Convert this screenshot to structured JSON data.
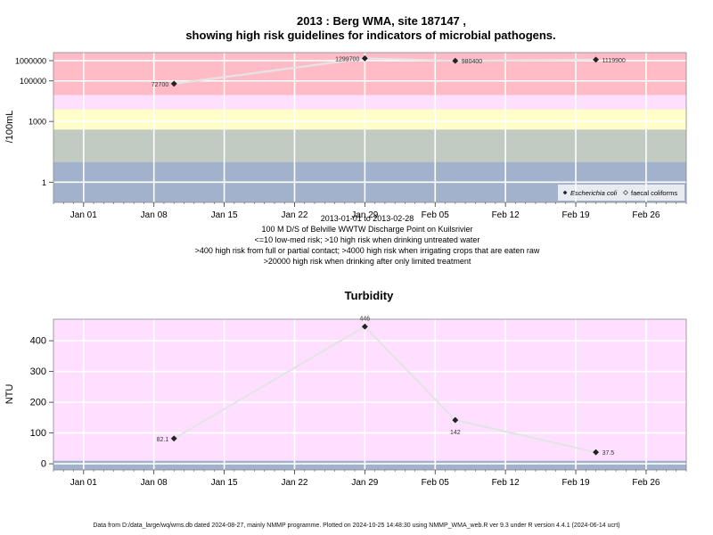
{
  "chart_data": [
    {
      "type": "scatter",
      "title": "2013 : Berg WMA, site 187147 ,",
      "subtitle": "showing high risk guidelines for indicators of microbial pathogens.",
      "ylabel": "/100mL",
      "y_scale": "log",
      "xlabel_lines": [
        "2013-01-01 to 2013-02-28",
        "100 M D/S of Belville WWTW Discharge Point on Kuilsrivier",
        "<=10 low-med risk; >10 high risk when drinking untreated water",
        ">400 high risk from full or partial contact; >4000 high risk when irrigating crops that are eaten raw",
        ">20000 high risk when drinking after only limited treatment"
      ],
      "x_ticks": [
        "Jan 01",
        "Jan 08",
        "Jan 15",
        "Jan 22",
        "Jan 29",
        "Feb 05",
        "Feb 12",
        "Feb 19",
        "Feb 26"
      ],
      "y_ticks": [
        "1000000",
        "100000",
        "1000",
        "1"
      ],
      "xlim": [
        "2012-12-29",
        "2013-03-02"
      ],
      "ylim": [
        0.1,
        2500000
      ],
      "risk_bands": [
        {
          "from": 0.1,
          "to": 10,
          "color": "#a3b2cc"
        },
        {
          "from": 10,
          "to": 400,
          "color": "#c2cbc2"
        },
        {
          "from": 400,
          "to": 4000,
          "color": "#fffdc8"
        },
        {
          "from": 4000,
          "to": 20000,
          "color": "#ffdfff"
        },
        {
          "from": 20000,
          "to": 2500000,
          "color": "#ffbcc7"
        }
      ],
      "legend_position": "bottom-right",
      "series": [
        {
          "name": "Escherichia coli",
          "marker": "filled-diamond",
          "points": [
            {
              "x": "2013-01-10",
              "y": 72700,
              "label": "72700"
            },
            {
              "x": "2013-01-29",
              "y": 1299700,
              "label": "1299700"
            },
            {
              "x": "2013-02-07",
              "y": 980400,
              "label": "980400"
            },
            {
              "x": "2013-02-21",
              "y": 1119900,
              "label": "1119900"
            }
          ]
        },
        {
          "name": "faecal coliforms",
          "marker": "open-diamond",
          "points": []
        }
      ]
    },
    {
      "type": "line",
      "title": "Turbidity",
      "ylabel": "NTU",
      "x_ticks": [
        "Jan 01",
        "Jan 08",
        "Jan 15",
        "Jan 22",
        "Jan 29",
        "Feb 05",
        "Feb 12",
        "Feb 19",
        "Feb 26"
      ],
      "y_ticks": [
        "0",
        "100",
        "200",
        "300",
        "400"
      ],
      "xlim": [
        "2012-12-29",
        "2013-03-02"
      ],
      "ylim": [
        -20,
        470
      ],
      "background_bands": [
        {
          "from": -20,
          "to": 10,
          "color": "#a3b2cc"
        },
        {
          "from": 10,
          "to": 470,
          "color": "#ffdfff"
        }
      ],
      "series": [
        {
          "name": "",
          "points": [
            {
              "x": "2013-01-10",
              "y": 82.1,
              "label": "82.1"
            },
            {
              "x": "2013-01-29",
              "y": 446,
              "label": "446"
            },
            {
              "x": "2013-02-07",
              "y": 142,
              "label": "142"
            },
            {
              "x": "2013-02-21",
              "y": 37.5,
              "label": "37.5"
            }
          ]
        }
      ]
    }
  ],
  "footer": "Data from D:/data_large/wq/wms.db dated 2024-08-27, mainly NMMP programme. Plotted on 2024-10-25 14:48:30 using NMMP_WMA_web.R ver 9.3 under R version 4.4.1 (2024-06-14 ucrt)"
}
